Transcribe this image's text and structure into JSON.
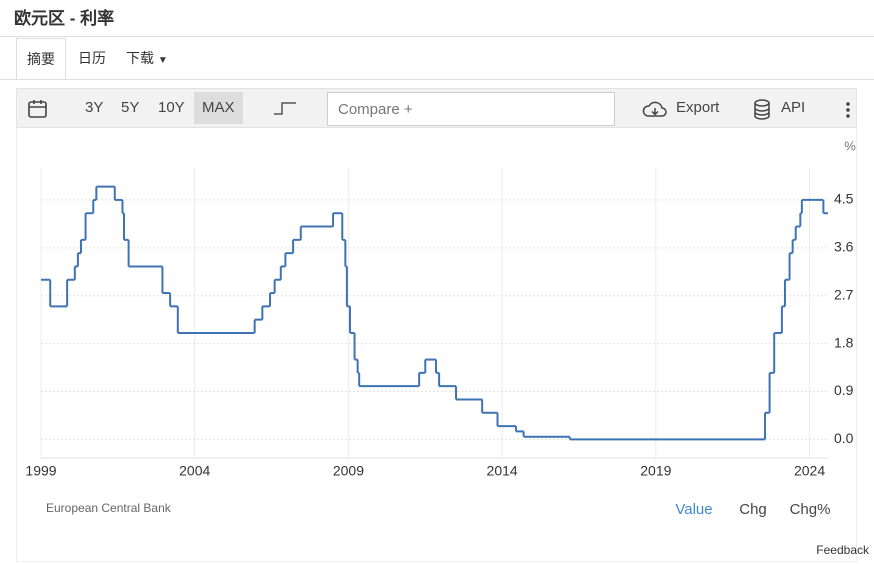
{
  "header": {
    "title": "欧元区 - 利率"
  },
  "tabs": [
    "摘要",
    "日历",
    "下载"
  ],
  "toolbar": {
    "ranges": [
      "3Y",
      "5Y",
      "10Y",
      "MAX"
    ],
    "compare_placeholder": "Compare +",
    "export": "Export",
    "api": "API"
  },
  "chart_data": {
    "type": "line",
    "step": true,
    "unit": "%",
    "source": "European Central Bank",
    "color": "#3d73b5",
    "x": [
      1999.0,
      1999.3,
      1999.85,
      2000.1,
      2000.2,
      2000.3,
      2000.45,
      2000.7,
      2000.8,
      2001.4,
      2001.65,
      2001.7,
      2001.85,
      2002.95,
      2003.2,
      2003.45,
      2005.95,
      2006.2,
      2006.45,
      2006.6,
      2006.8,
      2006.95,
      2007.2,
      2007.45,
      2008.5,
      2008.8,
      2008.9,
      2008.95,
      2009.05,
      2009.2,
      2009.3,
      2009.35,
      2011.3,
      2011.5,
      2011.85,
      2011.95,
      2012.5,
      2013.35,
      2013.85,
      2014.45,
      2014.7,
      2016.2,
      2022.55,
      2022.7,
      2022.85,
      2023.1,
      2023.2,
      2023.35,
      2023.45,
      2023.55,
      2023.7,
      2023.75,
      2024.45
    ],
    "values": [
      3.0,
      2.5,
      3.0,
      3.25,
      3.5,
      3.75,
      4.25,
      4.5,
      4.75,
      4.5,
      4.25,
      3.75,
      3.25,
      2.75,
      2.5,
      2.0,
      2.25,
      2.5,
      2.75,
      3.0,
      3.25,
      3.5,
      3.75,
      4.0,
      4.25,
      3.75,
      3.25,
      2.5,
      2.0,
      1.5,
      1.25,
      1.0,
      1.25,
      1.5,
      1.25,
      1.0,
      0.75,
      0.5,
      0.25,
      0.15,
      0.05,
      0.0,
      0.5,
      1.25,
      2.0,
      2.5,
      3.0,
      3.5,
      3.75,
      4.0,
      4.25,
      4.5,
      4.25
    ],
    "xlim": [
      1999,
      2024.6
    ],
    "xticks": [
      1999,
      2004,
      2009,
      2014,
      2019,
      2024
    ],
    "ylim": [
      -0.35,
      5.1
    ],
    "yticks": [
      {
        "value": 0,
        "label": "0.0"
      },
      0.9,
      1.8,
      2.7,
      3.6,
      4.5
    ],
    "grid": true
  },
  "footer": {
    "views": [
      "Value",
      "Chg",
      "Chg%"
    ],
    "active_view": 0,
    "feedback": "Feedback"
  }
}
